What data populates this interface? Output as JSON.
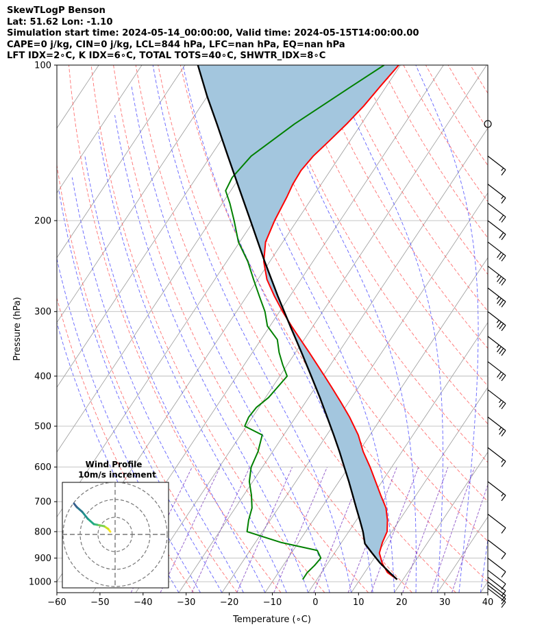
{
  "header": {
    "line1": "SkewTLogP Benson",
    "line2": "Lat: 51.62   Lon: -1.10",
    "line3": "Simulation start time: 2024-05-14_00:00:00, Valid time: 2024-05-15T14:00:00.00",
    "line4": "CAPE=0 j/kg, CIN=0 j/kg, LCL=844 hPa, LFC=nan hPa, EQ=nan hPa",
    "line5": "LFT IDX=2∘C, K IDX=6∘C, TOTAL TOTS=40∘C, SHWTR_IDX=8∘C"
  },
  "chart_data": {
    "type": "line",
    "title": "SkewTLogP Benson",
    "xlabel": "Temperature (∘C)",
    "ylabel": "Pressure (hPa)",
    "xlim": [
      -60,
      40
    ],
    "ylim": [
      1050,
      100
    ],
    "y_scale": "log",
    "x_ticks": [
      -60,
      -50,
      -40,
      -30,
      -20,
      -10,
      0,
      10,
      20,
      30,
      40
    ],
    "x_tick_labels": [
      "−60",
      "−50",
      "−40",
      "−30",
      "−20",
      "−10",
      "0",
      "10",
      "20",
      "30",
      "40"
    ],
    "y_ticks": [
      1000,
      900,
      800,
      700,
      600,
      500,
      400,
      300,
      200,
      100
    ],
    "y_tick_labels": [
      "1000",
      "900",
      "800",
      "700",
      "600",
      "500",
      "400",
      "300",
      "200",
      "100"
    ],
    "grid": true,
    "colors": {
      "temperature": "#ff0000",
      "dewpoint": "#008000",
      "parcel": "#000000",
      "shading": "#a3c6de",
      "dry_adiabat": "#ff6060",
      "moist_adiabat": "#5050ff",
      "mixing_ratio": "#8040c0",
      "isotherm": "#999999"
    },
    "series": [
      {
        "name": "",
        "role": "temperature",
        "p": [
          990,
          960,
          920,
          880,
          840,
          800,
          760,
          720,
          680,
          640,
          600,
          560,
          520,
          480,
          450,
          420,
          400,
          380,
          360,
          340,
          320,
          300,
          280,
          260,
          240,
          220,
          200,
          180,
          170,
          160,
          150,
          140,
          130,
          120,
          110,
          100
        ],
        "t": [
          18.6,
          15.3,
          12.6,
          10.4,
          9.5,
          8.9,
          7.2,
          5.0,
          1.8,
          -1.5,
          -5.0,
          -9.0,
          -12.7,
          -17.5,
          -21.7,
          -26.3,
          -29.6,
          -33.1,
          -36.8,
          -40.8,
          -45.0,
          -49.3,
          -53.6,
          -57.9,
          -61.4,
          -64.0,
          -65.2,
          -66.0,
          -66.6,
          -66.8,
          -66.2,
          -64.8,
          -63.4,
          -62.2,
          -61.4,
          -60.4
        ]
      },
      {
        "name": "",
        "role": "dewpoint",
        "p": [
          990,
          960,
          930,
          900,
          870,
          840,
          800,
          760,
          720,
          680,
          640,
          600,
          560,
          520,
          500,
          480,
          460,
          440,
          420,
          400,
          380,
          360,
          340,
          320,
          300,
          280,
          260,
          240,
          220,
          200,
          185,
          175,
          165,
          150,
          130,
          110,
          100
        ],
        "t": [
          -3.3,
          -3.3,
          -2.7,
          -2.4,
          -4.4,
          -13.9,
          -23.6,
          -25.0,
          -26.1,
          -28.2,
          -30.8,
          -32.6,
          -33.4,
          -35.0,
          -40.4,
          -40.9,
          -40.6,
          -39.3,
          -38.8,
          -38.3,
          -41.1,
          -43.8,
          -46.2,
          -50.6,
          -53.4,
          -57.1,
          -61.0,
          -65.1,
          -70.3,
          -74.6,
          -78.3,
          -81.2,
          -81.7,
          -80.6,
          -75.5,
          -68.1,
          -63.8
        ]
      },
      {
        "name": "",
        "role": "parcel",
        "p": [
          990,
          960,
          920,
          880,
          844,
          800,
          760,
          720,
          680,
          640,
          600,
          560,
          520,
          480,
          440,
          400,
          360,
          320,
          280,
          240,
          200,
          170,
          150,
          130,
          115,
          100
        ],
        "t": [
          18.6,
          15.8,
          12.1,
          8.7,
          5.6,
          3.3,
          0.8,
          -1.9,
          -4.7,
          -7.7,
          -11.0,
          -14.5,
          -18.4,
          -22.7,
          -27.4,
          -32.7,
          -38.6,
          -45.3,
          -52.8,
          -61.2,
          -70.8,
          -79.4,
          -86.0,
          -93.5,
          -100.0,
          -107.0
        ]
      }
    ],
    "inset": {
      "title_line1": "Wind Profile",
      "title_line2": "10m/s increment"
    }
  }
}
